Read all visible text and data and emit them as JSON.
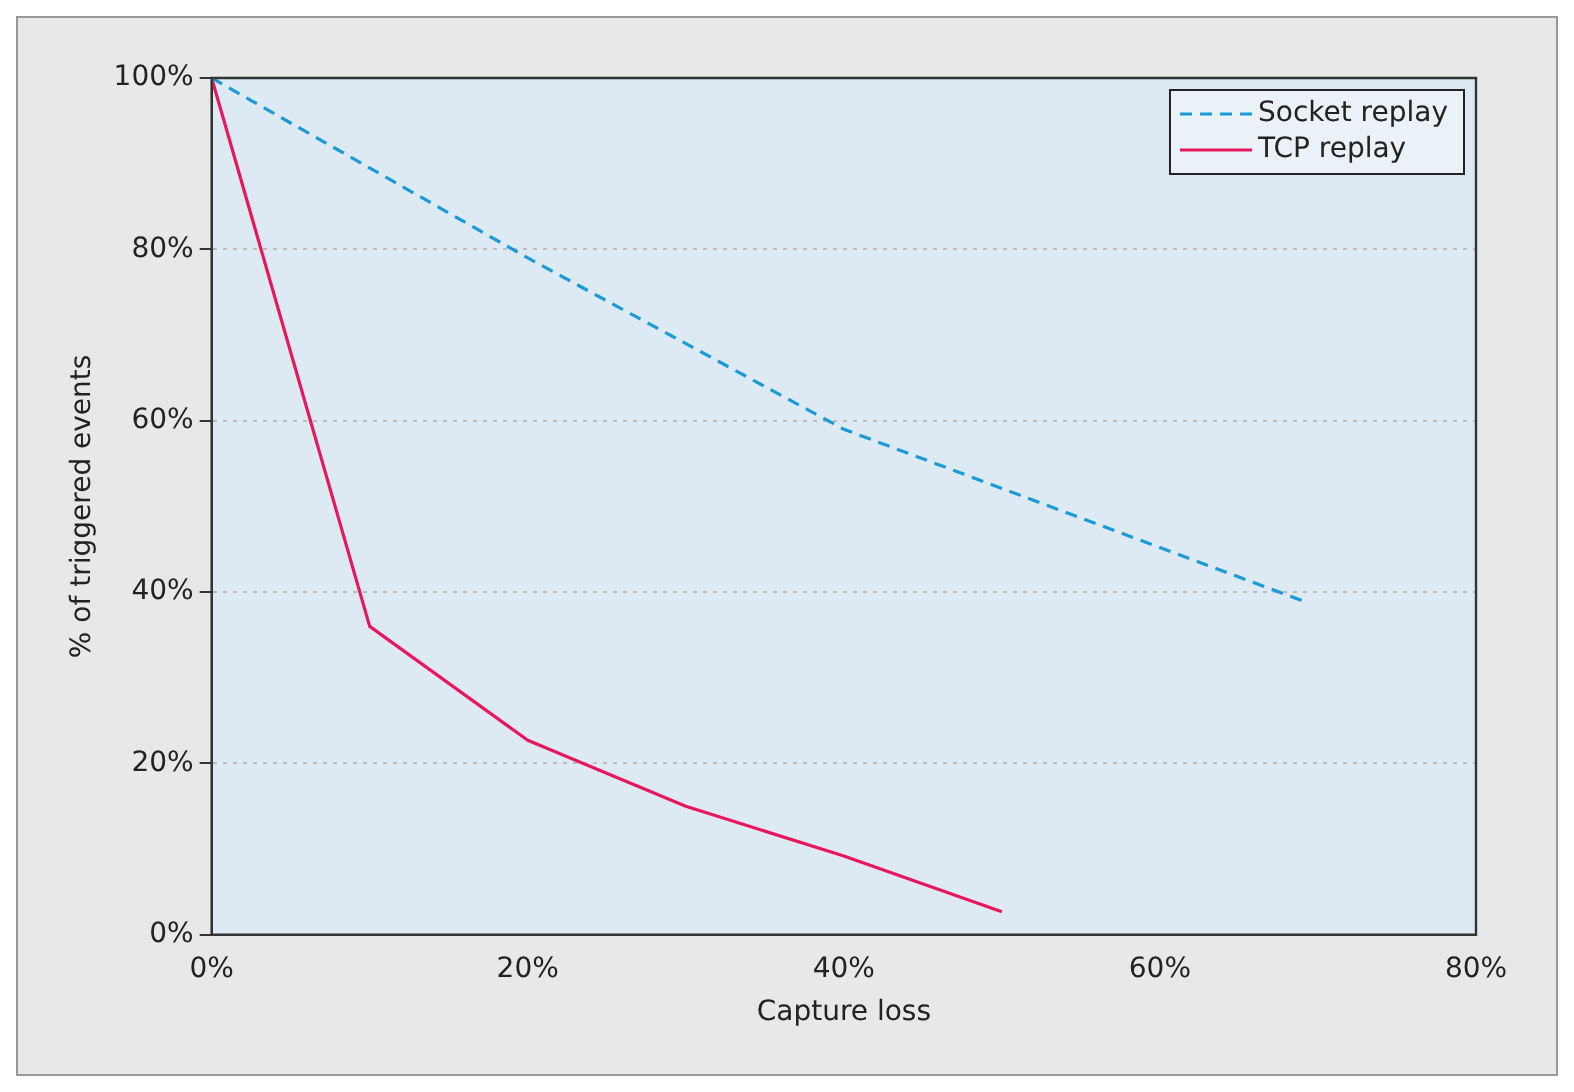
{
  "chart_data": {
    "type": "line",
    "xlabel": "Capture loss",
    "ylabel": "% of triggered events",
    "xlim": [
      0,
      80
    ],
    "xticks": [
      {
        "value": 0,
        "label": "0%"
      },
      {
        "value": 20,
        "label": "20%"
      },
      {
        "value": 40,
        "label": "40%"
      },
      {
        "value": 60,
        "label": "60%"
      },
      {
        "value": 80,
        "label": "80%"
      }
    ],
    "ylim": [
      0,
      100
    ],
    "yticks": [
      {
        "value": 0,
        "label": "0%"
      },
      {
        "value": 20,
        "label": "20%"
      },
      {
        "value": 40,
        "label": "40%"
      },
      {
        "value": 60,
        "label": "60%"
      },
      {
        "value": 80,
        "label": "80%"
      },
      {
        "value": 100,
        "label": "100%"
      }
    ],
    "grid": "y",
    "legend": "top right",
    "marker": "none",
    "series": [
      {
        "name": "Socket replay",
        "color": "#1a9ad6",
        "line_style": "dashed",
        "x": [
          0,
          20,
          40,
          69
        ],
        "values": [
          100,
          79,
          59,
          39
        ]
      },
      {
        "name": "TCP replay",
        "color": "#e8175d",
        "line_style": "solid",
        "x": [
          0,
          10,
          20,
          30,
          40,
          50
        ],
        "values": [
          100,
          36,
          22.7,
          15,
          9.2,
          2.7
        ]
      }
    ]
  }
}
